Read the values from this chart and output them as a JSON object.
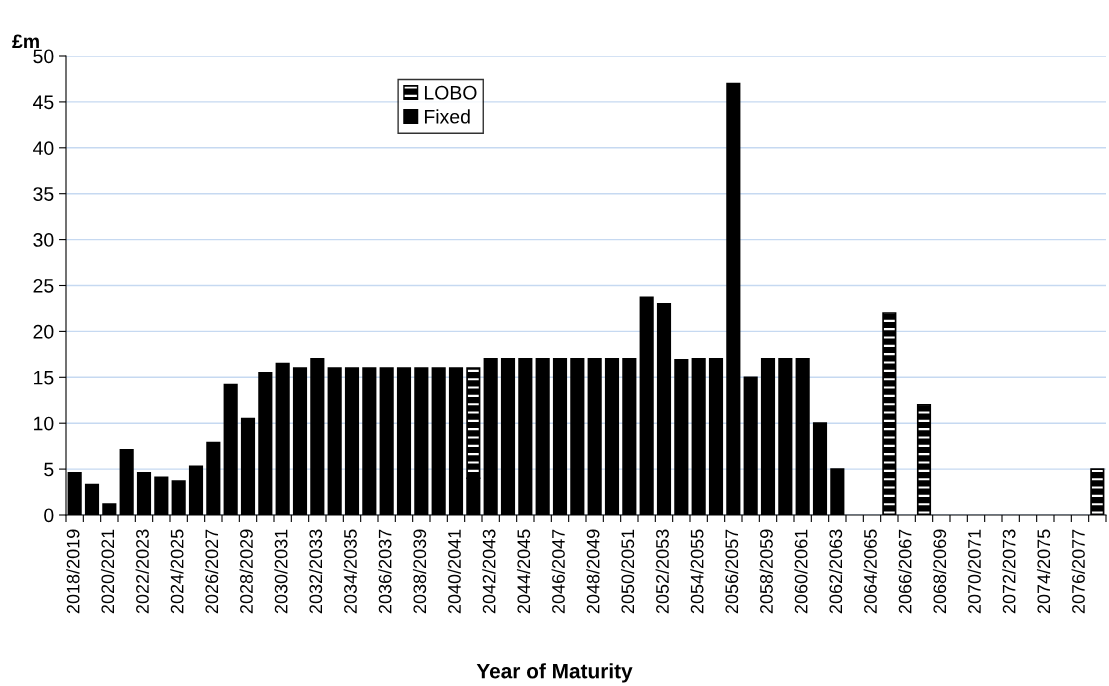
{
  "chart_data": {
    "type": "bar",
    "stacked": true,
    "xlabel": "Year of Maturity",
    "ylabel": "£m",
    "categories": [
      "2018/2019",
      null,
      "2020/2021",
      null,
      "2022/2023",
      null,
      "2024/2025",
      null,
      "2026/2027",
      null,
      "2028/2029",
      null,
      "2030/2031",
      null,
      "2032/2033",
      null,
      "2034/2035",
      null,
      "2036/2037",
      null,
      "2038/2039",
      null,
      "2040/2041",
      null,
      "2042/2043",
      null,
      "2044/2045",
      null,
      "2046/2047",
      null,
      "2048/2049",
      null,
      "2050/2051",
      null,
      "2052/2053",
      null,
      "2054/2055",
      null,
      "2056/2057",
      null,
      "2058/2059",
      null,
      "2060/2061",
      null,
      "2062/2063",
      null,
      "2064/2065",
      null,
      "2066/2067",
      null,
      "2068/2069",
      null,
      "2070/2071",
      null,
      "2072/2073",
      null,
      "2074/2075",
      null,
      "2076/2077",
      null
    ],
    "series": [
      {
        "name": "Fixed",
        "color": "#000000",
        "values": [
          4.6,
          3.3,
          1.2,
          7.1,
          4.6,
          4.1,
          3.7,
          5.3,
          7.9,
          14.2,
          10.5,
          15.5,
          16.5,
          16,
          17,
          16,
          16,
          16,
          16,
          16,
          16,
          16,
          16,
          4,
          17,
          17,
          17,
          17,
          17,
          17,
          17,
          17,
          17,
          23.7,
          23,
          16.9,
          17,
          17,
          47,
          15,
          17,
          17,
          17,
          10,
          5,
          null,
          null,
          null,
          null,
          null,
          null,
          null,
          null,
          null,
          null,
          null,
          null,
          null,
          null,
          null
        ]
      },
      {
        "name": "LOBO",
        "color": "#000000",
        "values": [
          null,
          null,
          null,
          null,
          null,
          null,
          null,
          null,
          null,
          null,
          null,
          null,
          null,
          null,
          null,
          null,
          null,
          null,
          null,
          null,
          null,
          null,
          null,
          12,
          null,
          null,
          null,
          null,
          null,
          null,
          null,
          null,
          null,
          null,
          null,
          null,
          null,
          null,
          null,
          null,
          null,
          null,
          null,
          null,
          null,
          null,
          null,
          22,
          null,
          12,
          null,
          null,
          null,
          null,
          null,
          null,
          null,
          null,
          null,
          5
        ]
      }
    ],
    "ylim": [
      0,
      50
    ],
    "yticks": [
      0,
      5,
      10,
      15,
      20,
      25,
      30,
      35,
      40,
      45,
      50
    ],
    "grid": "y",
    "legend": "top left"
  }
}
